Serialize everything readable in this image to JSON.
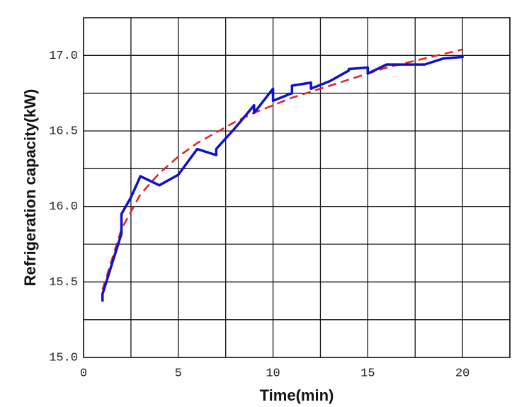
{
  "chart_data": {
    "type": "line",
    "x_label": "Time(min)",
    "y_label": "Refrigeration capacity(kW)",
    "xlim": [
      0,
      22.5
    ],
    "ylim": [
      15,
      17.25
    ],
    "xticks": [
      0,
      5,
      10,
      15,
      20
    ],
    "yticks": [
      {
        "value": 15,
        "label": "15.0"
      },
      {
        "value": 15.5,
        "label": "15.5"
      },
      {
        "value": 16,
        "label": "16.0"
      },
      {
        "value": 16.5,
        "label": "16.5"
      },
      {
        "value": 17,
        "label": "17.0"
      }
    ],
    "xminor": [
      2.5,
      7.5,
      12.5,
      17.5,
      22.5
    ],
    "yminor": [
      15.25,
      15.75,
      16.25,
      16.75,
      17.25
    ],
    "grid": true,
    "series": [
      {
        "color": "#1010c8",
        "dash": false,
        "x": [
          1,
          1,
          2,
          2,
          2.5,
          3,
          4,
          5,
          6,
          7,
          7,
          8,
          9,
          9,
          10,
          10,
          11,
          11,
          12,
          12,
          13,
          14,
          14,
          15,
          15,
          16,
          17,
          18,
          19,
          20,
          20
        ],
        "values": [
          15.37,
          15.42,
          15.82,
          15.95,
          16.06,
          16.2,
          16.14,
          16.21,
          16.38,
          16.34,
          16.38,
          16.52,
          16.67,
          16.62,
          16.78,
          16.7,
          16.75,
          16.8,
          16.82,
          16.78,
          16.83,
          16.9,
          16.91,
          16.92,
          16.88,
          16.94,
          16.94,
          16.94,
          16.98,
          16.99,
          17.0
        ]
      },
      {
        "color": "#e02020",
        "dash": true,
        "x": [
          1,
          2,
          3,
          4,
          5,
          6,
          7,
          8,
          9,
          10,
          11,
          12,
          13,
          14,
          15,
          16,
          17,
          18,
          19,
          20
        ],
        "values": [
          15.45,
          15.85,
          16.08,
          16.22,
          16.33,
          16.42,
          16.49,
          16.56,
          16.62,
          16.67,
          16.72,
          16.76,
          16.8,
          16.84,
          16.88,
          16.92,
          16.95,
          16.98,
          17.01,
          17.04
        ]
      }
    ]
  }
}
